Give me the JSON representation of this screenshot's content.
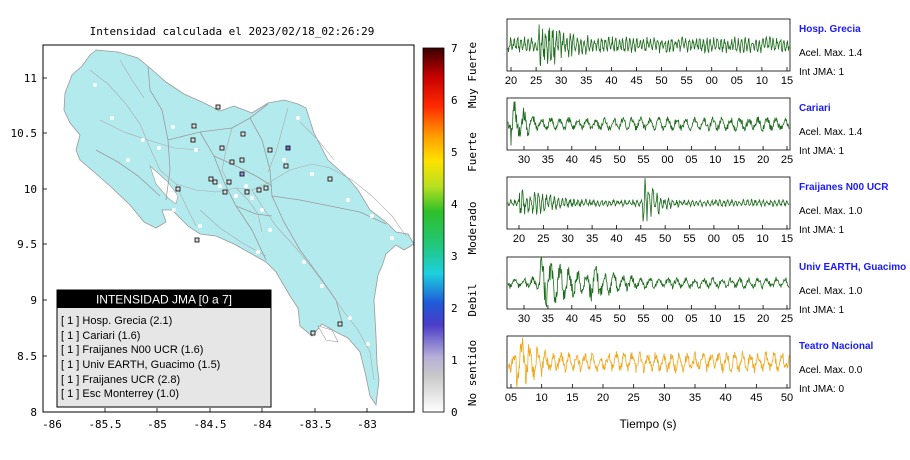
{
  "map": {
    "title": "Intensidad calculada el 2023/02/18_02:26:29",
    "x_ticks": [
      "-86",
      "-85.5",
      "-85",
      "-84.5",
      "-84",
      "-83.5",
      "-83"
    ],
    "y_ticks": [
      "11",
      "10.5",
      "10",
      "9.5",
      "9",
      "8.5",
      "8"
    ],
    "xlim": [
      -86,
      -82.5
    ],
    "ylim": [
      8,
      11.3
    ],
    "land_color": "#b3eaed",
    "legend": {
      "title": "INTENSIDAD JMA [0 a 7]",
      "items": [
        "[ 1 ]  Hosp. Grecia (2.1)",
        "[ 1 ]  Cariari (1.6)",
        "[ 1 ]  Fraijanes N00 UCR (1.6)",
        "[ 1 ]  Univ EARTH, Guacimo (1.5)",
        "[ 1 ]  Fraijanes UCR (2.8)",
        "[ 1 ]  Esc Monterrey (1.0)"
      ]
    }
  },
  "colorbar": {
    "ticks": [
      "0",
      "1",
      "2",
      "3",
      "4",
      "5",
      "6",
      "7"
    ],
    "labels": [
      "No sentido",
      "Debil",
      "Moderado",
      "Fuerte",
      "Muy Fuerte"
    ]
  },
  "waveforms": {
    "xlabel": "Tiempo (s)",
    "panels": [
      {
        "station": "Hosp. Grecia",
        "acel": "Acel. Max. 1.4",
        "int": "Int JMA: 1",
        "color": "#1a6b1a",
        "ticks": [
          "20",
          "25",
          "30",
          "35",
          "40",
          "45",
          "50",
          "55",
          "00",
          "05",
          "10",
          "15"
        ]
      },
      {
        "station": "Cariari",
        "acel": "Acel. Max. 1.4",
        "int": "Int JMA: 1",
        "color": "#1a6b1a",
        "ticks": [
          "30",
          "35",
          "40",
          "45",
          "50",
          "55",
          "00",
          "05",
          "10",
          "15",
          "20",
          "25"
        ]
      },
      {
        "station": "Fraijanes N00 UCR",
        "acel": "Acel. Max. 1.0",
        "int": "Int JMA: 1",
        "color": "#1a6b1a",
        "ticks": [
          "20",
          "25",
          "30",
          "35",
          "40",
          "45",
          "50",
          "55",
          "00",
          "05",
          "10",
          "15"
        ]
      },
      {
        "station": "Univ EARTH, Guacimo",
        "acel": "Acel. Max. 1.0",
        "int": "Int JMA: 1",
        "color": "#1a6b1a",
        "ticks": [
          "30",
          "35",
          "40",
          "45",
          "50",
          "55",
          "00",
          "05",
          "10",
          "15",
          "20",
          "25"
        ]
      },
      {
        "station": "Teatro Nacional",
        "acel": "Acel. Max. 0.0",
        "int": "Int JMA: 0",
        "color": "#f2a516",
        "ticks": [
          "05",
          "10",
          "15",
          "20",
          "25",
          "30",
          "35",
          "40",
          "45",
          "50"
        ]
      }
    ]
  },
  "chart_data": [
    {
      "type": "scatter",
      "title": "Intensidad calculada el 2023/02/18_02:26:29",
      "xlim": [
        -86,
        -82.5
      ],
      "ylim": [
        8,
        11.3
      ],
      "x_ticks": [
        -86,
        -85.5,
        -85,
        -84.5,
        -84,
        -83.5,
        -83
      ],
      "y_ticks": [
        8,
        8.5,
        9,
        9.5,
        10,
        10.5,
        11
      ],
      "color_scale": {
        "min": 0,
        "max": 7,
        "labels": [
          "No sentido",
          "Debil",
          "Moderado",
          "Fuerte",
          "Muy Fuerte"
        ]
      },
      "legend": [
        "Hosp. Grecia (2.1)",
        "Cariari (1.6)",
        "Fraijanes N00 UCR (1.6)",
        "Univ EARTH, Guacimo (1.5)",
        "Fraijanes UCR (2.8)",
        "Esc Monterrey (1.0)"
      ]
    },
    {
      "type": "line",
      "xlabel": "Tiempo (s)",
      "series": [
        {
          "name": "Hosp. Grecia",
          "acel_max": 1.4,
          "int_jma": 1
        },
        {
          "name": "Cariari",
          "acel_max": 1.4,
          "int_jma": 1
        },
        {
          "name": "Fraijanes N00 UCR",
          "acel_max": 1.0,
          "int_jma": 1
        },
        {
          "name": "Univ EARTH, Guacimo",
          "acel_max": 1.0,
          "int_jma": 1
        },
        {
          "name": "Teatro Nacional",
          "acel_max": 0.0,
          "int_jma": 0
        }
      ]
    }
  ]
}
